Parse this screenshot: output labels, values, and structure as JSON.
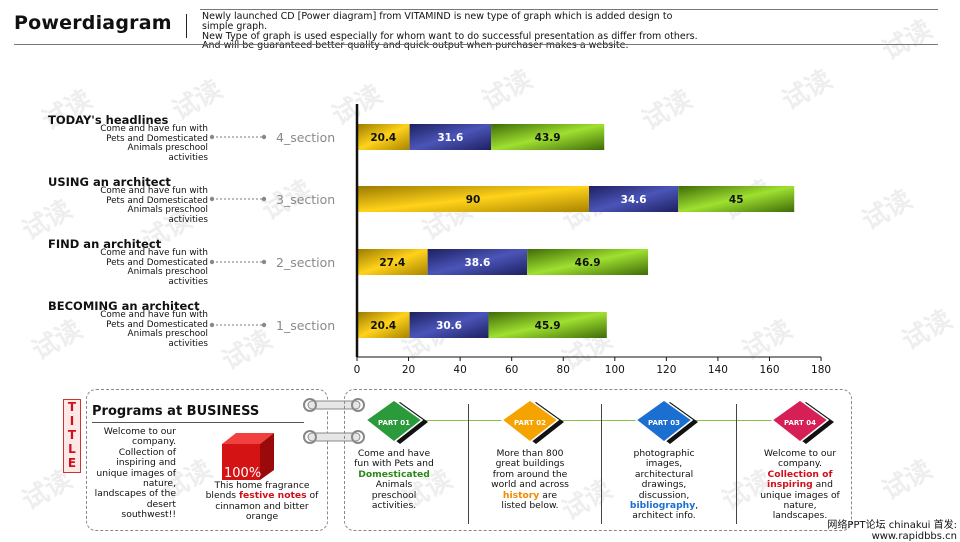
{
  "header": {
    "brand": "Powerdiagram",
    "description_lines": [
      "Newly launched CD [Power diagram] from VITAMIND is new type of graph which is added design to",
      "simple graph.",
      "New Type of graph is used especially for whom want to do successful presentation as differ from others.",
      "And will be guaranteed better quality and quick output when purchaser makes a website."
    ]
  },
  "chart_data": {
    "type": "bar",
    "orientation": "horizontal",
    "stacked": true,
    "categories": [
      "4_section",
      "3_section",
      "2_section",
      "1_section"
    ],
    "series": [
      {
        "values": [
          20.4,
          90,
          27.4,
          20.4
        ],
        "color": "#e8b800"
      },
      {
        "values": [
          31.6,
          34.6,
          38.6,
          30.6
        ],
        "color": "#2a2f80"
      },
      {
        "values": [
          43.9,
          45,
          46.9,
          45.9
        ],
        "color": "#5f9e1a"
      }
    ],
    "xlim": [
      0,
      180
    ],
    "xticks": [
      "0",
      "20",
      "40",
      "60",
      "80",
      "100",
      "120",
      "140",
      "160",
      "180"
    ],
    "row_titles": [
      "TODAY's headlines",
      "USING an architect",
      "FIND an architect",
      "BECOMING an architect"
    ],
    "row_desc": [
      "Come and have fun with",
      "Pets and Domesticated",
      "Animals preschool",
      "activities"
    ]
  },
  "business": {
    "title_letters": [
      "T",
      "I",
      "T",
      "L",
      "E"
    ],
    "heading": "Programs at BUSINESS",
    "welcome": "Welcome to our company. Collection of inspiring and unique images of nature, landscapes of the desert southwest!!",
    "percent": "100%",
    "fragrance_before": "This home fragrance blends ",
    "fragrance_highlight": "festive notes",
    "fragrance_after": " of cinnamon and bitter orange"
  },
  "parts": [
    {
      "label": "PART 01",
      "color": "#2a9a3a",
      "text_before": "Come and have fun with Pets and ",
      "highlight": "Domesticated",
      "text_after": " Animals preschool activities."
    },
    {
      "label": "PART 02",
      "color": "#f5a300",
      "text_before": "More than 800 great buildings from around the world and across ",
      "highlight": "history",
      "text_after": " are listed below."
    },
    {
      "label": "PART 03",
      "color": "#1a6fd0",
      "text_before": "photographic images, architectural drawings, discussion, ",
      "highlight": "bibliography",
      "text_after": ", architect info."
    },
    {
      "label": "PART 04",
      "color": "#d61f55",
      "text_before": "Welcome to our company. ",
      "highlight": "Collection of inspiring",
      "text_after": " and unique images of nature, landscapes."
    }
  ],
  "footer": {
    "line1": "网络PPT论坛 chinakui 首发:",
    "line2": "www.rapidbbs.cn"
  },
  "watermark": "试读"
}
